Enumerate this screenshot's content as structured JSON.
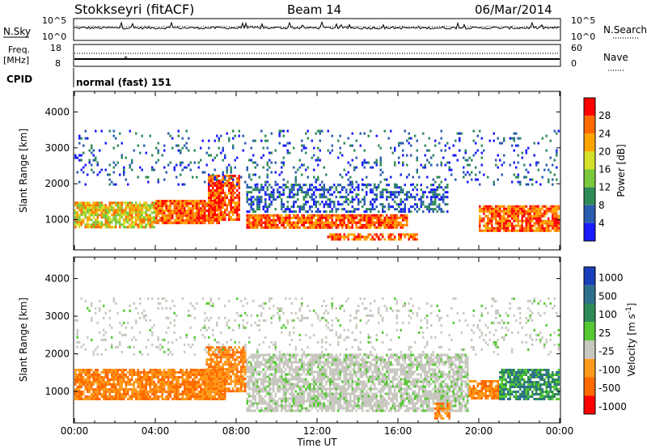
{
  "header": {
    "station": "Stokkseyri (fitACF)",
    "beam": "Beam 14",
    "date": "06/Mar/2014"
  },
  "panels": {
    "nsky_label": "N.Sky",
    "nsky_top": "10^5",
    "nsky_bottom": "10^0",
    "nsearch_label": "N.Search",
    "nsearch_top": "10^5",
    "nsearch_bottom": "10^0",
    "freq_label_1": "Freq.",
    "freq_label_2": "[MHz]",
    "freq_top": "18",
    "freq_bottom": "8",
    "nave_label": "Nave",
    "nave_top": "60",
    "nave_bottom": "0",
    "cpid_label": "CPID",
    "cpid_value": "normal (fast) 151"
  },
  "chart_data": [
    {
      "type": "heatmap",
      "name": "power",
      "ylabel": "Slant Range [km]",
      "xlabel": "",
      "x_ticks": [
        "00:00",
        "04:00",
        "08:00",
        "12:00",
        "16:00",
        "20:00",
        "00:00"
      ],
      "xlim_hours": [
        0,
        24
      ],
      "y_ticks": [
        1000,
        2000,
        3000,
        4000
      ],
      "ylim": [
        180,
        4550
      ],
      "colorbar": {
        "label": "Power [dB]",
        "ticks": [
          4,
          8,
          12,
          16,
          20,
          24,
          28
        ],
        "range": [
          0,
          32
        ],
        "colors": [
          "#1a1aff",
          "#2a5cb0",
          "#2e8b57",
          "#7ac83c",
          "#d4e02a",
          "#ffa500",
          "#ff6a00",
          "#ff0000"
        ]
      },
      "bands": [
        {
          "t0": 0.0,
          "t1": 4.0,
          "r0": 820,
          "r1": 1500,
          "level": "mid",
          "density": 0.85
        },
        {
          "t0": 4.0,
          "t1": 7.2,
          "r0": 900,
          "r1": 1550,
          "level": "high",
          "density": 0.9
        },
        {
          "t0": 6.6,
          "t1": 8.2,
          "r0": 1000,
          "r1": 2250,
          "level": "high",
          "density": 0.85
        },
        {
          "t0": 8.5,
          "t1": 16.5,
          "r0": 750,
          "r1": 1150,
          "level": "high",
          "density": 0.9
        },
        {
          "t0": 8.5,
          "t1": 18.5,
          "r0": 1200,
          "r1": 2000,
          "level": "low",
          "density": 0.45
        },
        {
          "t0": 12.5,
          "t1": 17.0,
          "r0": 450,
          "r1": 620,
          "level": "high",
          "density": 0.6
        },
        {
          "t0": 20.0,
          "t1": 24.0,
          "r0": 700,
          "r1": 1400,
          "level": "high",
          "density": 0.85
        },
        {
          "t0": 0.0,
          "t1": 24.0,
          "r0": 2000,
          "r1": 3500,
          "level": "low",
          "density": 0.12
        }
      ]
    },
    {
      "type": "heatmap",
      "name": "velocity",
      "ylabel": "Slant Range [km]",
      "xlabel": "Time UT",
      "x_ticks": [
        "00:00",
        "04:00",
        "08:00",
        "12:00",
        "16:00",
        "20:00",
        "00:00"
      ],
      "xlim_hours": [
        0,
        24
      ],
      "y_ticks": [
        1000,
        2000,
        3000,
        4000
      ],
      "ylim": [
        180,
        4550
      ],
      "colorbar": {
        "label": "Velocity [m s^-1]",
        "ticks": [
          1000,
          500,
          100,
          25,
          -25,
          -100,
          -500,
          -1000
        ],
        "colors": [
          "#1b3fb8",
          "#2e6f8e",
          "#2e8b57",
          "#55c832",
          "#c8c8c0",
          "#ff9a1a",
          "#ff6a00",
          "#ff0000"
        ]
      },
      "bands": [
        {
          "t0": 0.0,
          "t1": 7.5,
          "r0": 800,
          "r1": 1600,
          "level": "away",
          "density": 0.85
        },
        {
          "t0": 6.5,
          "t1": 8.5,
          "r0": 1000,
          "r1": 2200,
          "level": "away",
          "density": 0.8
        },
        {
          "t0": 8.5,
          "t1": 19.5,
          "r0": 500,
          "r1": 2000,
          "level": "slow",
          "density": 0.75
        },
        {
          "t0": 17.8,
          "t1": 18.6,
          "r0": 300,
          "r1": 700,
          "level": "away",
          "density": 0.8
        },
        {
          "t0": 19.5,
          "t1": 21.0,
          "r0": 800,
          "r1": 1300,
          "level": "away",
          "density": 0.85
        },
        {
          "t0": 21.0,
          "t1": 24.0,
          "r0": 800,
          "r1": 1600,
          "level": "toward",
          "density": 0.8
        },
        {
          "t0": 0.0,
          "t1": 24.0,
          "r0": 2000,
          "r1": 3500,
          "level": "slow",
          "density": 0.12
        }
      ]
    }
  ]
}
